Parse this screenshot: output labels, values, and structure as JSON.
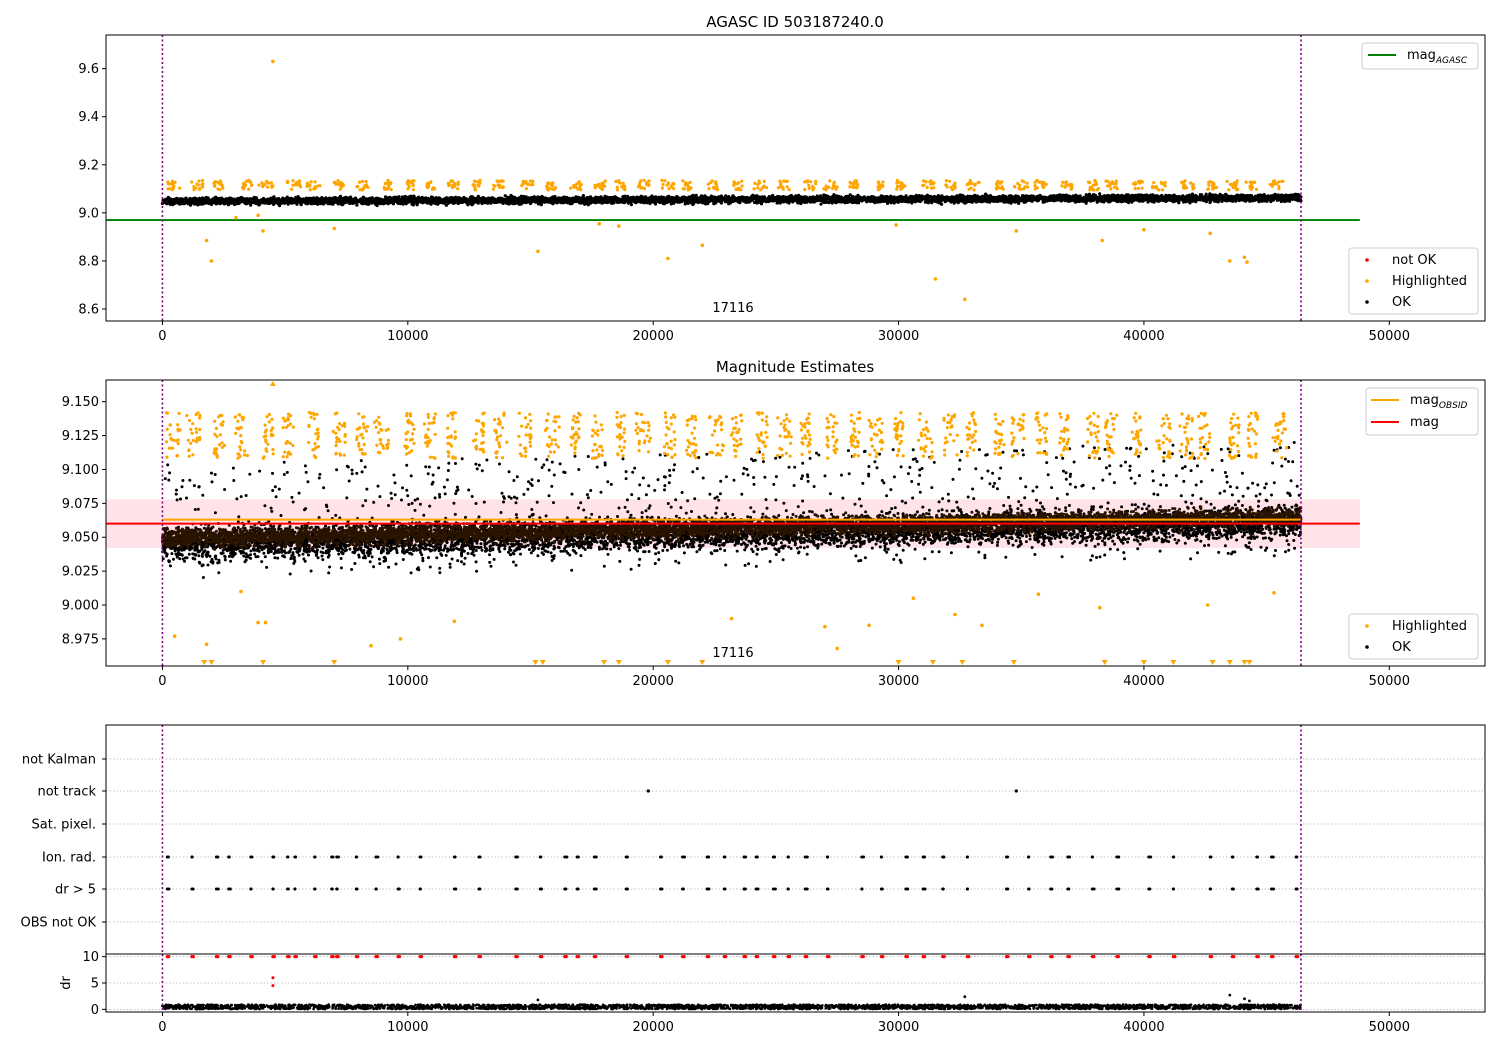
{
  "colors": {
    "ok": "#000000",
    "highlighted": "#ffa500",
    "not_ok": "#ff0000",
    "agasc_line": "#008000",
    "mag_line": "#ff0000",
    "obsid_line": "#ffa500",
    "band": "#ffc0cb",
    "obs_boundary": "#800080",
    "grid": "#b0b0b0"
  },
  "chart_data": [
    {
      "type": "scatter",
      "title": "AGASC ID 503187240.0",
      "xlim": [
        -2300,
        53900
      ],
      "ylim": [
        8.55,
        9.74
      ],
      "xticks": [
        0,
        10000,
        20000,
        30000,
        40000,
        50000
      ],
      "xtick_labels": [
        "0",
        "10000",
        "20000",
        "30000",
        "40000",
        "50000"
      ],
      "yticks": [
        8.6,
        8.8,
        9.0,
        9.2,
        9.4,
        9.6
      ],
      "ytick_labels": [
        "8.6",
        "8.8",
        "9.0",
        "9.2",
        "9.4",
        "9.6"
      ],
      "obs_boundaries": [
        0,
        46400
      ],
      "obsid_label": {
        "text": "17116",
        "x": 23200,
        "y": 8.575
      },
      "mag_agasc": {
        "value": 8.97,
        "x_range": [
          -2300,
          48800
        ]
      },
      "ok_band": {
        "x_range": [
          0,
          46400
        ],
        "y_center_start": 9.048,
        "y_center_end": 9.062,
        "half_width": 0.03
      },
      "highlighted_clusters": {
        "count": 48,
        "y_center": 9.115,
        "half_width": 0.02
      },
      "outliers": [
        {
          "x": 4500,
          "y": 9.63
        },
        {
          "x": 1800,
          "y": 8.885
        },
        {
          "x": 2000,
          "y": 8.8
        },
        {
          "x": 3000,
          "y": 8.98
        },
        {
          "x": 3900,
          "y": 8.99
        },
        {
          "x": 4100,
          "y": 8.925
        },
        {
          "x": 7000,
          "y": 8.935
        },
        {
          "x": 15300,
          "y": 8.84
        },
        {
          "x": 17800,
          "y": 8.955
        },
        {
          "x": 18600,
          "y": 8.945
        },
        {
          "x": 20600,
          "y": 8.81
        },
        {
          "x": 22000,
          "y": 8.865
        },
        {
          "x": 29900,
          "y": 8.95
        },
        {
          "x": 31500,
          "y": 8.725
        },
        {
          "x": 32700,
          "y": 8.64
        },
        {
          "x": 34800,
          "y": 8.925
        },
        {
          "x": 38300,
          "y": 8.885
        },
        {
          "x": 40000,
          "y": 8.93
        },
        {
          "x": 42700,
          "y": 8.915
        },
        {
          "x": 43500,
          "y": 8.8
        },
        {
          "x": 44100,
          "y": 8.815
        },
        {
          "x": 44200,
          "y": 8.795
        }
      ],
      "legend_top": [
        {
          "label": "mag",
          "subscript": "AGASC",
          "marker": "line",
          "color": "#008000"
        }
      ],
      "legend_bottom": [
        {
          "label": "not OK",
          "marker": "dot",
          "color": "#ff0000"
        },
        {
          "label": "Highlighted",
          "marker": "dot",
          "color": "#ffa500"
        },
        {
          "label": "OK",
          "marker": "dot",
          "color": "#000000"
        }
      ]
    },
    {
      "type": "scatter",
      "title": "Magnitude Estimates",
      "xlim": [
        -2300,
        53900
      ],
      "ylim": [
        8.955,
        9.166
      ],
      "xticks": [
        0,
        10000,
        20000,
        30000,
        40000,
        50000
      ],
      "xtick_labels": [
        "0",
        "10000",
        "20000",
        "30000",
        "40000",
        "50000"
      ],
      "yticks": [
        8.975,
        9.0,
        9.025,
        9.05,
        9.075,
        9.1,
        9.125,
        9.15
      ],
      "ytick_labels": [
        "8.975",
        "9.000",
        "9.025",
        "9.050",
        "9.075",
        "9.100",
        "9.125",
        "9.150"
      ],
      "obs_boundaries": [
        0,
        46400
      ],
      "obsid_label": {
        "text": "17116",
        "x": 23200,
        "y": 8.96
      },
      "mag": {
        "value": 9.06,
        "x_range": [
          -2300,
          48800
        ]
      },
      "mag_band": {
        "low": 9.042,
        "high": 9.078,
        "x_range": [
          -2300,
          48800
        ]
      },
      "mag_obsid": {
        "value": 9.063,
        "x_range": [
          0,
          46400
        ]
      },
      "ok_band": {
        "x_range": [
          0,
          46400
        ],
        "y_low_start": 9.025,
        "y_high_start": 9.065,
        "y_low_end": 9.04,
        "y_high_end": 9.082
      },
      "highlighted_clusters": {
        "count": 48,
        "y_low": 9.108,
        "y_high": 9.142
      },
      "low_outliers": [
        {
          "x": 500,
          "y": 8.977
        },
        {
          "x": 1800,
          "y": 8.971
        },
        {
          "x": 3200,
          "y": 9.01
        },
        {
          "x": 3900,
          "y": 8.987
        },
        {
          "x": 4200,
          "y": 8.987
        },
        {
          "x": 8500,
          "y": 8.97
        },
        {
          "x": 9700,
          "y": 8.975
        },
        {
          "x": 11900,
          "y": 8.988
        },
        {
          "x": 23200,
          "y": 8.99
        },
        {
          "x": 27000,
          "y": 8.984
        },
        {
          "x": 27500,
          "y": 8.968
        },
        {
          "x": 28800,
          "y": 8.985
        },
        {
          "x": 30600,
          "y": 9.005
        },
        {
          "x": 32300,
          "y": 8.993
        },
        {
          "x": 33400,
          "y": 8.985
        },
        {
          "x": 35700,
          "y": 9.008
        },
        {
          "x": 38200,
          "y": 8.998
        },
        {
          "x": 42600,
          "y": 9.0
        },
        {
          "x": 45300,
          "y": 9.009
        }
      ],
      "clipped_markers": [
        1700,
        2000,
        4100,
        7000,
        15200,
        15500,
        18000,
        18600,
        20600,
        22000,
        30000,
        31400,
        32600,
        34700,
        38400,
        40000,
        41200,
        42800,
        43500,
        44100,
        44300
      ],
      "top_clipped_markers": [
        4500
      ],
      "legend_top": [
        {
          "label": "mag",
          "subscript": "OBSID",
          "marker": "line",
          "color": "#ffa500"
        },
        {
          "label": "mag",
          "marker": "line",
          "color": "#ff0000"
        }
      ],
      "legend_bottom": [
        {
          "label": "Highlighted",
          "marker": "dot",
          "color": "#ffa500"
        },
        {
          "label": "OK",
          "marker": "dot",
          "color": "#000000"
        }
      ]
    },
    {
      "type": "scatter",
      "title": "",
      "xlim": [
        -2300,
        53900
      ],
      "categories": [
        "not Kalman",
        "not track",
        "Sat. pixel.",
        "Ion. rad.",
        "dr > 5",
        "OBS not OK"
      ],
      "obs_boundaries": [
        0,
        46400
      ],
      "not_track_points": [
        19800,
        34800
      ],
      "flag_positions": [
        200,
        1200,
        2200,
        2700,
        3600,
        4500,
        5100,
        5400,
        6200,
        6900,
        7100,
        7900,
        8700,
        9600,
        10500,
        11900,
        12900,
        14400,
        15400,
        16400,
        16900,
        17600,
        18900,
        20300,
        21200,
        22200,
        22900,
        23700,
        24200,
        24900,
        25500,
        26200,
        27100,
        28500,
        29300,
        30300,
        31000,
        31800,
        32800,
        34400,
        35300,
        36200,
        36900,
        37900,
        38900,
        40200,
        41200,
        42700,
        43600,
        44600,
        45200,
        46200
      ]
    },
    {
      "type": "scatter",
      "title": "",
      "ylabel": "dr",
      "xlim": [
        -2300,
        53900
      ],
      "ylim": [
        -0.5,
        10.5
      ],
      "xticks": [
        0,
        10000,
        20000,
        30000,
        40000,
        50000
      ],
      "xtick_labels": [
        "0",
        "10000",
        "20000",
        "30000",
        "40000",
        "50000"
      ],
      "yticks": [
        0,
        5,
        10
      ],
      "ytick_labels": [
        "0",
        "5",
        "10"
      ],
      "obs_boundaries": [
        0,
        46400
      ],
      "baseline": {
        "y_low": 0.05,
        "y_high": 0.9
      },
      "flag_value": 10,
      "red_points": [
        {
          "x": 4500,
          "y": 6.0
        },
        {
          "x": 4500,
          "y": 4.5
        }
      ],
      "spikes": [
        {
          "x": 15300,
          "y": 1.8
        },
        {
          "x": 32700,
          "y": 2.4
        },
        {
          "x": 43500,
          "y": 2.7
        },
        {
          "x": 44100,
          "y": 2.0
        },
        {
          "x": 44300,
          "y": 1.6
        }
      ]
    }
  ]
}
